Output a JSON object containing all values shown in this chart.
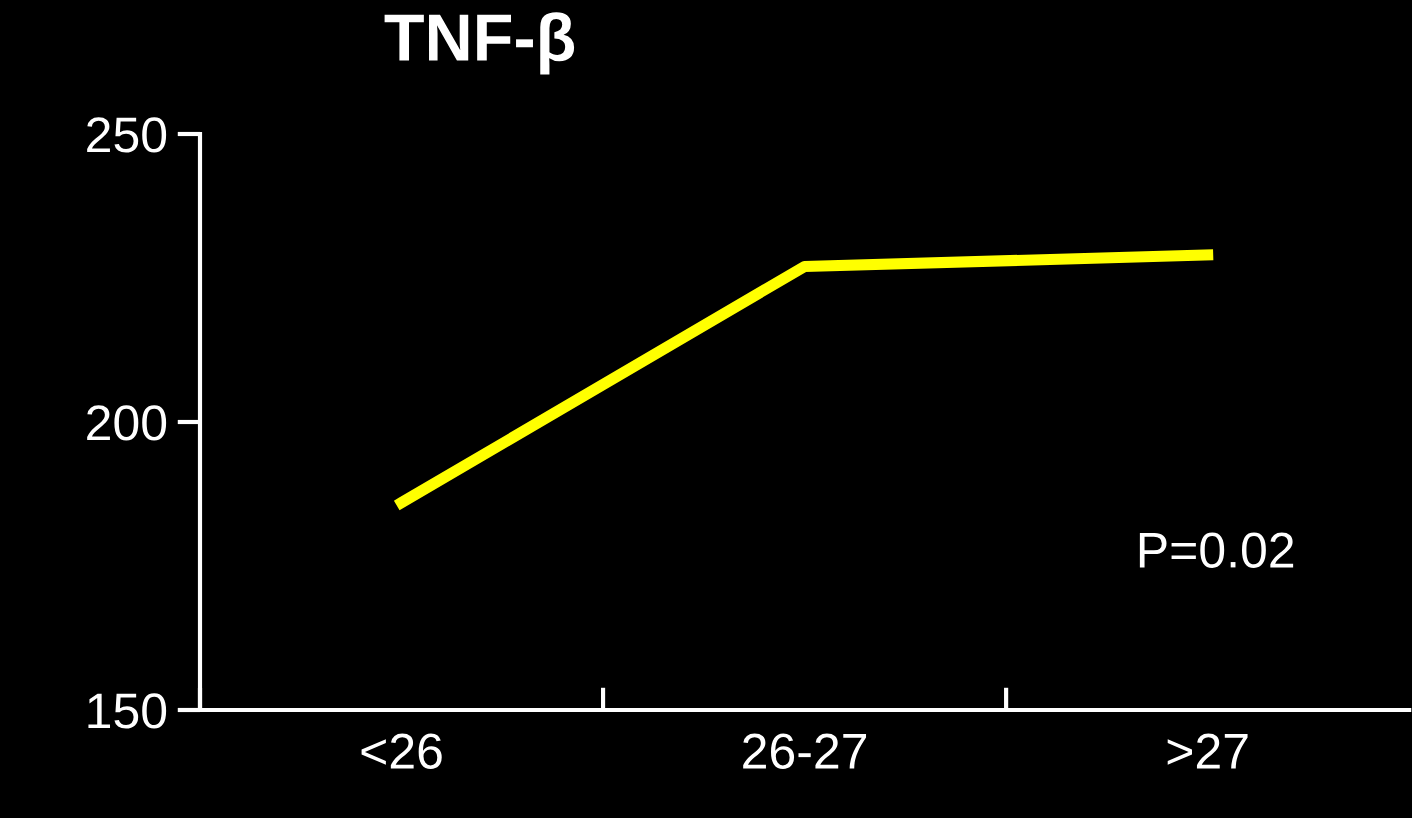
{
  "chart_data": {
    "type": "line",
    "title": "TNF-β",
    "categories": [
      "<26",
      "26-27",
      ">27"
    ],
    "series": [
      {
        "color": "#ffff00",
        "values": [
          186,
          227,
          229
        ]
      }
    ],
    "ylim": [
      150,
      250
    ],
    "yticks": [
      150,
      200,
      250
    ],
    "annotations": [
      "P=0.02"
    ],
    "grid": false,
    "legend": false,
    "marker": "none",
    "line_style": "solid"
  }
}
